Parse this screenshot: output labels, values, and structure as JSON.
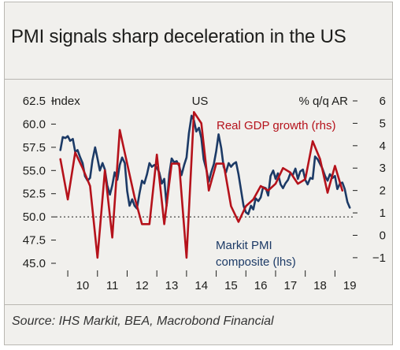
{
  "title": "PMI signals sharp deceleration in the US",
  "source": "Source: IHS Markit, BEA, Macrobond Financial",
  "colors": {
    "pmi": "#1c3a66",
    "gdp": "#b5121b",
    "background": "#f1f0ed",
    "reference": "#1d1d1b"
  },
  "chart_data": {
    "type": "line",
    "panel_label": "US",
    "left_axis": {
      "label": "Index",
      "min": 45,
      "max": 62.5,
      "ticks": [
        "45.0",
        "47.5",
        "50.0",
        "52.5",
        "55.0",
        "57.5",
        "60.0",
        "62.5"
      ]
    },
    "right_axis": {
      "label": "% q/q AR",
      "min": -1.25,
      "max": 6,
      "ticks": [
        "-1",
        "0",
        "1",
        "2",
        "3",
        "4",
        "5",
        "6"
      ]
    },
    "x_axis": {
      "min": 2009.6,
      "max": 2019.6,
      "ticks": [
        "10",
        "11",
        "12",
        "13",
        "14",
        "15",
        "16",
        "17",
        "18",
        "19"
      ]
    },
    "reference_line": {
      "axis": "left",
      "value": 50
    },
    "series": [
      {
        "name": "Markit PMI composite (lhs)",
        "axis": "left",
        "points": [
          [
            2009.75,
            57.2
          ],
          [
            2009.83,
            58.6
          ],
          [
            2009.92,
            58.5
          ],
          [
            2010.0,
            58.7
          ],
          [
            2010.08,
            58.2
          ],
          [
            2010.17,
            58.4
          ],
          [
            2010.25,
            57.0
          ],
          [
            2010.33,
            57.2
          ],
          [
            2010.42,
            56.4
          ],
          [
            2010.5,
            55.8
          ],
          [
            2010.58,
            54.4
          ],
          [
            2010.67,
            53.9
          ],
          [
            2010.75,
            54.2
          ],
          [
            2010.83,
            56.1
          ],
          [
            2010.92,
            57.5
          ],
          [
            2011.0,
            56.3
          ],
          [
            2011.08,
            55.0
          ],
          [
            2011.17,
            55.8
          ],
          [
            2011.25,
            55.1
          ],
          [
            2011.33,
            53.4
          ],
          [
            2011.42,
            52.4
          ],
          [
            2011.5,
            53.4
          ],
          [
            2011.58,
            54.8
          ],
          [
            2011.67,
            54.0
          ],
          [
            2011.75,
            55.6
          ],
          [
            2011.83,
            56.4
          ],
          [
            2011.92,
            55.8
          ],
          [
            2012.0,
            52.8
          ],
          [
            2012.08,
            51.2
          ],
          [
            2012.17,
            51.9
          ],
          [
            2012.25,
            51.2
          ],
          [
            2012.33,
            50.9
          ],
          [
            2012.42,
            52.6
          ],
          [
            2012.5,
            53.9
          ],
          [
            2012.58,
            53.6
          ],
          [
            2012.67,
            54.6
          ],
          [
            2012.75,
            55.8
          ],
          [
            2012.83,
            55.4
          ],
          [
            2012.92,
            55.6
          ],
          [
            2013.0,
            55.3
          ],
          [
            2013.08,
            54.8
          ],
          [
            2013.17,
            53.6
          ],
          [
            2013.25,
            54.1
          ],
          [
            2013.33,
            51.2
          ],
          [
            2013.42,
            54.6
          ],
          [
            2013.5,
            56.3
          ],
          [
            2013.58,
            55.9
          ],
          [
            2013.67,
            56.0
          ],
          [
            2013.75,
            55.5
          ],
          [
            2013.83,
            54.5
          ],
          [
            2013.92,
            55.6
          ],
          [
            2014.0,
            56.4
          ],
          [
            2014.08,
            59.0
          ],
          [
            2014.17,
            60.9
          ],
          [
            2014.25,
            60.4
          ],
          [
            2014.33,
            59.2
          ],
          [
            2014.42,
            59.6
          ],
          [
            2014.5,
            58.5
          ],
          [
            2014.58,
            56.2
          ],
          [
            2014.67,
            55.1
          ],
          [
            2014.75,
            53.8
          ],
          [
            2014.83,
            54.8
          ],
          [
            2014.92,
            55.7
          ],
          [
            2015.0,
            57.1
          ],
          [
            2015.08,
            58.9
          ],
          [
            2015.17,
            57.4
          ],
          [
            2015.25,
            55.4
          ],
          [
            2015.33,
            54.8
          ],
          [
            2015.42,
            55.8
          ],
          [
            2015.5,
            55.4
          ],
          [
            2015.58,
            55.7
          ],
          [
            2015.67,
            55.9
          ],
          [
            2015.75,
            54.6
          ],
          [
            2015.83,
            53.0
          ],
          [
            2015.92,
            51.2
          ],
          [
            2016.0,
            50.5
          ],
          [
            2016.08,
            50.3
          ],
          [
            2016.17,
            51.2
          ],
          [
            2016.25,
            50.8
          ],
          [
            2016.33,
            52.0
          ],
          [
            2016.42,
            51.7
          ],
          [
            2016.5,
            52.1
          ],
          [
            2016.58,
            53.2
          ],
          [
            2016.67,
            53.1
          ],
          [
            2016.75,
            52.3
          ],
          [
            2016.83,
            54.4
          ],
          [
            2016.92,
            55.0
          ],
          [
            2017.0,
            54.1
          ],
          [
            2017.08,
            54.7
          ],
          [
            2017.17,
            53.5
          ],
          [
            2017.25,
            53.1
          ],
          [
            2017.33,
            53.6
          ],
          [
            2017.42,
            54.0
          ],
          [
            2017.5,
            54.7
          ],
          [
            2017.58,
            54.5
          ],
          [
            2017.67,
            55.2
          ],
          [
            2017.75,
            54.1
          ],
          [
            2017.83,
            54.9
          ],
          [
            2017.92,
            55.1
          ],
          [
            2018.0,
            54.0
          ],
          [
            2018.08,
            53.5
          ],
          [
            2018.17,
            54.2
          ],
          [
            2018.25,
            54.1
          ],
          [
            2018.33,
            56.5
          ],
          [
            2018.42,
            56.2
          ],
          [
            2018.5,
            55.7
          ],
          [
            2018.58,
            55.2
          ],
          [
            2018.67,
            54.4
          ],
          [
            2018.75,
            53.9
          ],
          [
            2018.83,
            54.6
          ],
          [
            2018.92,
            54.2
          ],
          [
            2019.0,
            54.4
          ],
          [
            2019.08,
            53.0
          ],
          [
            2019.17,
            53.6
          ],
          [
            2019.25,
            53.7
          ],
          [
            2019.33,
            53.0
          ],
          [
            2019.42,
            51.6
          ],
          [
            2019.5,
            51.0
          ]
        ]
      },
      {
        "name": "Real GDP growth (rhs)",
        "axis": "right",
        "points": [
          [
            2009.75,
            3.4
          ],
          [
            2010.0,
            1.6
          ],
          [
            2010.25,
            3.7
          ],
          [
            2010.5,
            3.0
          ],
          [
            2010.75,
            2.2
          ],
          [
            2011.0,
            -1.0
          ],
          [
            2011.25,
            2.9
          ],
          [
            2011.5,
            -0.1
          ],
          [
            2011.75,
            4.7
          ],
          [
            2012.0,
            3.2
          ],
          [
            2012.25,
            1.7
          ],
          [
            2012.5,
            0.5
          ],
          [
            2012.75,
            0.5
          ],
          [
            2013.0,
            3.6
          ],
          [
            2013.25,
            0.5
          ],
          [
            2013.5,
            3.2
          ],
          [
            2013.75,
            3.2
          ],
          [
            2014.0,
            -1.0
          ],
          [
            2014.25,
            5.5
          ],
          [
            2014.5,
            5.0
          ],
          [
            2014.75,
            2.0
          ],
          [
            2015.0,
            3.2
          ],
          [
            2015.25,
            3.2
          ],
          [
            2015.5,
            1.3
          ],
          [
            2015.75,
            0.6
          ],
          [
            2016.0,
            1.3
          ],
          [
            2016.25,
            1.6
          ],
          [
            2016.5,
            2.2
          ],
          [
            2016.75,
            2.0
          ],
          [
            2017.0,
            2.3
          ],
          [
            2017.25,
            3.0
          ],
          [
            2017.5,
            2.8
          ],
          [
            2017.75,
            2.3
          ],
          [
            2018.0,
            2.5
          ],
          [
            2018.25,
            4.2
          ],
          [
            2018.5,
            3.4
          ],
          [
            2018.75,
            1.9
          ],
          [
            2019.0,
            3.1
          ],
          [
            2019.25,
            2.0
          ]
        ]
      }
    ],
    "annotations": [
      {
        "text": "Real GDP growth (rhs)",
        "series": "Real GDP growth (rhs)"
      },
      {
        "text": "Markit PMI",
        "series": "Markit PMI composite (lhs)"
      },
      {
        "text": "composite (lhs)",
        "series": "Markit PMI composite (lhs)"
      }
    ]
  }
}
